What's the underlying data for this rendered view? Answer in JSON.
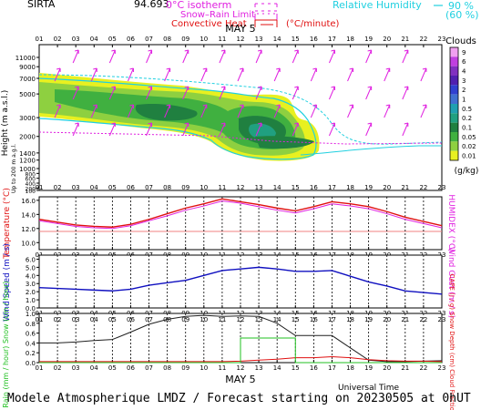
{
  "header": {
    "site": "SIRTA",
    "coords": "94.693",
    "legend_isotherm": "0°C isotherm",
    "legend_snow_rain": "Snow–Rain Limit",
    "legend_convective": "Convective Heat",
    "legend_convective_unit": "(°C/minute)",
    "legend_rh": "Relative Humidity",
    "legend_rh_90": "90 %",
    "legend_rh_60": "(60 %)"
  },
  "colors": {
    "magenta": "#e020e0",
    "cyan": "#20d0e0",
    "red": "#e01010",
    "blue": "#1010c0",
    "green": "#20c020",
    "ygreen": "#e8f020",
    "lgreen": "#8ed040",
    "mgreen": "#40b040",
    "dgreen": "#208040",
    "teal": "#20a080"
  },
  "footer": "Modele Atmospherique LMDZ / Forecast starting on 20230505 at 0hUT",
  "chart_data": [
    {
      "type": "heatmap",
      "title": "Clouds",
      "date_label": "MAY  5",
      "ylabel": "Height (m a.s.l.)",
      "ylabel_low": "Up to 200 m a.g.l.",
      "yticks": [
        100,
        200,
        400,
        600,
        800,
        1000,
        1200,
        1400,
        2000,
        3000,
        5000,
        7000,
        9000,
        11000
      ],
      "x_hours": [
        "01",
        "02",
        "03",
        "04",
        "05",
        "06",
        "07",
        "08",
        "09",
        "10",
        "11",
        "12",
        "13",
        "14",
        "15",
        "16",
        "17",
        "18",
        "19",
        "20",
        "21",
        "22",
        "23"
      ],
      "colorbar": {
        "title": "Clouds",
        "unit": "(g/kg)",
        "labels": [
          "9",
          "6",
          "4",
          "3",
          "2",
          "1",
          "0.5",
          "0.2",
          "0.1",
          "0.05",
          "0.02",
          "0.01"
        ],
        "colors": [
          "#f0a0f0",
          "#c040e0",
          "#8030c0",
          "#5020b0",
          "#3040d0",
          "#4070d0",
          "#20a0b0",
          "#20a080",
          "#208040",
          "#40b040",
          "#8ed040",
          "#e8f020"
        ]
      }
    },
    {
      "type": "line",
      "ylabel": "Temperature (°C)",
      "ylabel_right": "HUMIDEX (°C)",
      "yticks": [
        10.0,
        12.0,
        14.0,
        16.0
      ],
      "ylim": [
        9.0,
        16.5
      ],
      "x_hours": [
        "01",
        "02",
        "03",
        "04",
        "05",
        "06",
        "07",
        "08",
        "09",
        "10",
        "11",
        "12",
        "13",
        "14",
        "15",
        "16",
        "17",
        "18",
        "19",
        "20",
        "21",
        "22",
        "23"
      ],
      "series": [
        {
          "values": [
            13.3,
            12.9,
            12.5,
            12.3,
            12.2,
            12.6,
            13.3,
            14.1,
            14.9,
            15.5,
            16.2,
            15.8,
            15.4,
            14.9,
            14.5,
            15.1,
            15.8,
            15.5,
            15.1,
            14.4,
            13.6,
            13.0,
            12.4
          ]
        },
        {
          "values": [
            13.1,
            12.7,
            12.3,
            12.1,
            12.0,
            12.4,
            13.1,
            13.8,
            14.6,
            15.2,
            15.9,
            15.6,
            15.1,
            14.6,
            14.2,
            14.8,
            15.5,
            15.2,
            14.8,
            14.1,
            13.3,
            12.7,
            12.1
          ]
        }
      ]
    },
    {
      "type": "line",
      "ylabel": "Wind Speed (m / s)",
      "ylabel_right": "Wind Gust (m / s)",
      "yticks": [
        0.0,
        1.0,
        2.0,
        3.0,
        4.0,
        5.0,
        6.0
      ],
      "ylim": [
        0,
        6.5
      ],
      "x_hours": [
        "01",
        "02",
        "03",
        "04",
        "05",
        "06",
        "07",
        "08",
        "09",
        "10",
        "11",
        "12",
        "13",
        "14",
        "15",
        "16",
        "17",
        "18",
        "19",
        "20",
        "21",
        "22",
        "23"
      ],
      "series": [
        {
          "values": [
            2.5,
            2.4,
            2.3,
            2.2,
            2.1,
            2.3,
            2.8,
            3.1,
            3.4,
            4.0,
            4.6,
            4.8,
            5.0,
            4.8,
            4.5,
            4.5,
            4.6,
            3.9,
            3.2,
            2.7,
            2.1,
            1.9,
            1.7
          ]
        }
      ]
    },
    {
      "type": "line",
      "ylabel": "Rain (mm / hour) Snow (cm / hour)",
      "ylabel_right": "CAPE (J / g) Snow Depth (cm) Cloud Fraction",
      "yticks": [
        0.0,
        0.2,
        0.4,
        0.6,
        0.8,
        1.0
      ],
      "ylim": [
        0,
        1.0
      ],
      "x_hours": [
        "01",
        "02",
        "03",
        "04",
        "05",
        "06",
        "07",
        "08",
        "09",
        "10",
        "11",
        "12",
        "13",
        "14",
        "15",
        "16",
        "17",
        "18",
        "19",
        "20",
        "21",
        "22",
        "23"
      ],
      "series": [
        {
          "values": [
            0.4,
            0.4,
            0.42,
            0.45,
            0.47,
            0.62,
            0.78,
            0.88,
            0.94,
            0.96,
            0.94,
            0.95,
            0.94,
            0.8,
            0.55,
            0.55,
            0.55,
            0.3,
            0.05,
            0.02,
            0.02,
            0.03,
            0.04
          ]
        },
        {
          "values": [
            0.02,
            0.02,
            0.02,
            0.02,
            0.02,
            0.02,
            0.02,
            0.02,
            0.02,
            0.02,
            0.02,
            0.03,
            0.05,
            0.07,
            0.1,
            0.1,
            0.12,
            0.1,
            0.06,
            0.04,
            0.03,
            0.03,
            0.02
          ]
        },
        {
          "values": [
            0,
            0,
            0,
            0,
            0,
            0,
            0,
            0,
            0,
            0,
            0,
            0.5,
            0.5,
            0.5,
            0,
            0,
            0,
            0,
            0,
            0,
            0,
            0,
            0
          ],
          "style": "step"
        }
      ]
    }
  ],
  "time_axis_label": "Universal Time"
}
